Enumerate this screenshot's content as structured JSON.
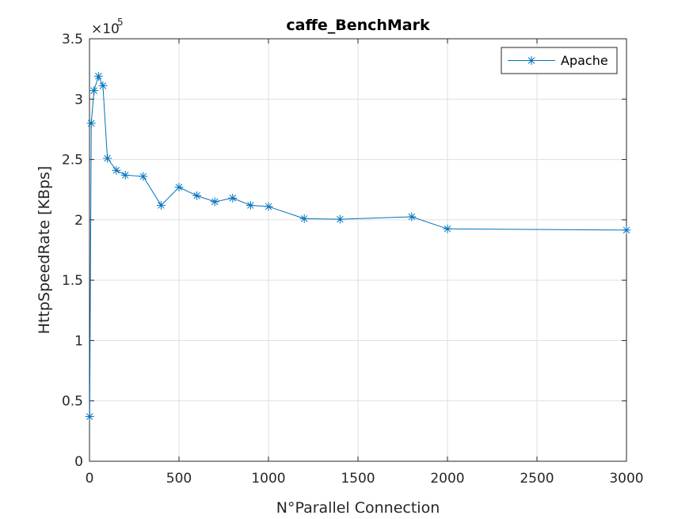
{
  "chart_data": {
    "type": "line",
    "title": "caffe_BenchMark",
    "xlabel": "N°Parallel Connection",
    "ylabel": "HttpSpeedRate [KBps]",
    "y_exponent_label": "×10",
    "y_exponent": "5",
    "xlim": [
      0,
      3000
    ],
    "ylim": [
      0,
      350000
    ],
    "x_ticks": [
      0,
      500,
      1000,
      1500,
      2000,
      2500,
      3000
    ],
    "x_tick_labels": [
      "0",
      "500",
      "1000",
      "1500",
      "2000",
      "2500",
      "3000"
    ],
    "y_ticks": [
      0,
      50000,
      100000,
      150000,
      200000,
      250000,
      300000,
      350000
    ],
    "y_tick_labels": [
      "0",
      "0.5",
      "1",
      "1.5",
      "2",
      "2.5",
      "3",
      "3.5"
    ],
    "grid": true,
    "legend_position": "top-right",
    "marker": "asterisk",
    "color": "#0072bd",
    "series": [
      {
        "name": "Apache",
        "x": [
          1,
          10,
          25,
          50,
          75,
          100,
          150,
          200,
          300,
          400,
          500,
          600,
          700,
          800,
          900,
          1000,
          1200,
          1400,
          1800,
          2000,
          3000
        ],
        "y": [
          37000,
          280000,
          307000,
          319000,
          311000,
          251000,
          241000,
          237000,
          236000,
          212000,
          227000,
          220000,
          215000,
          218000,
          212000,
          211000,
          201000,
          200500,
          202500,
          192500,
          191500
        ]
      }
    ]
  }
}
